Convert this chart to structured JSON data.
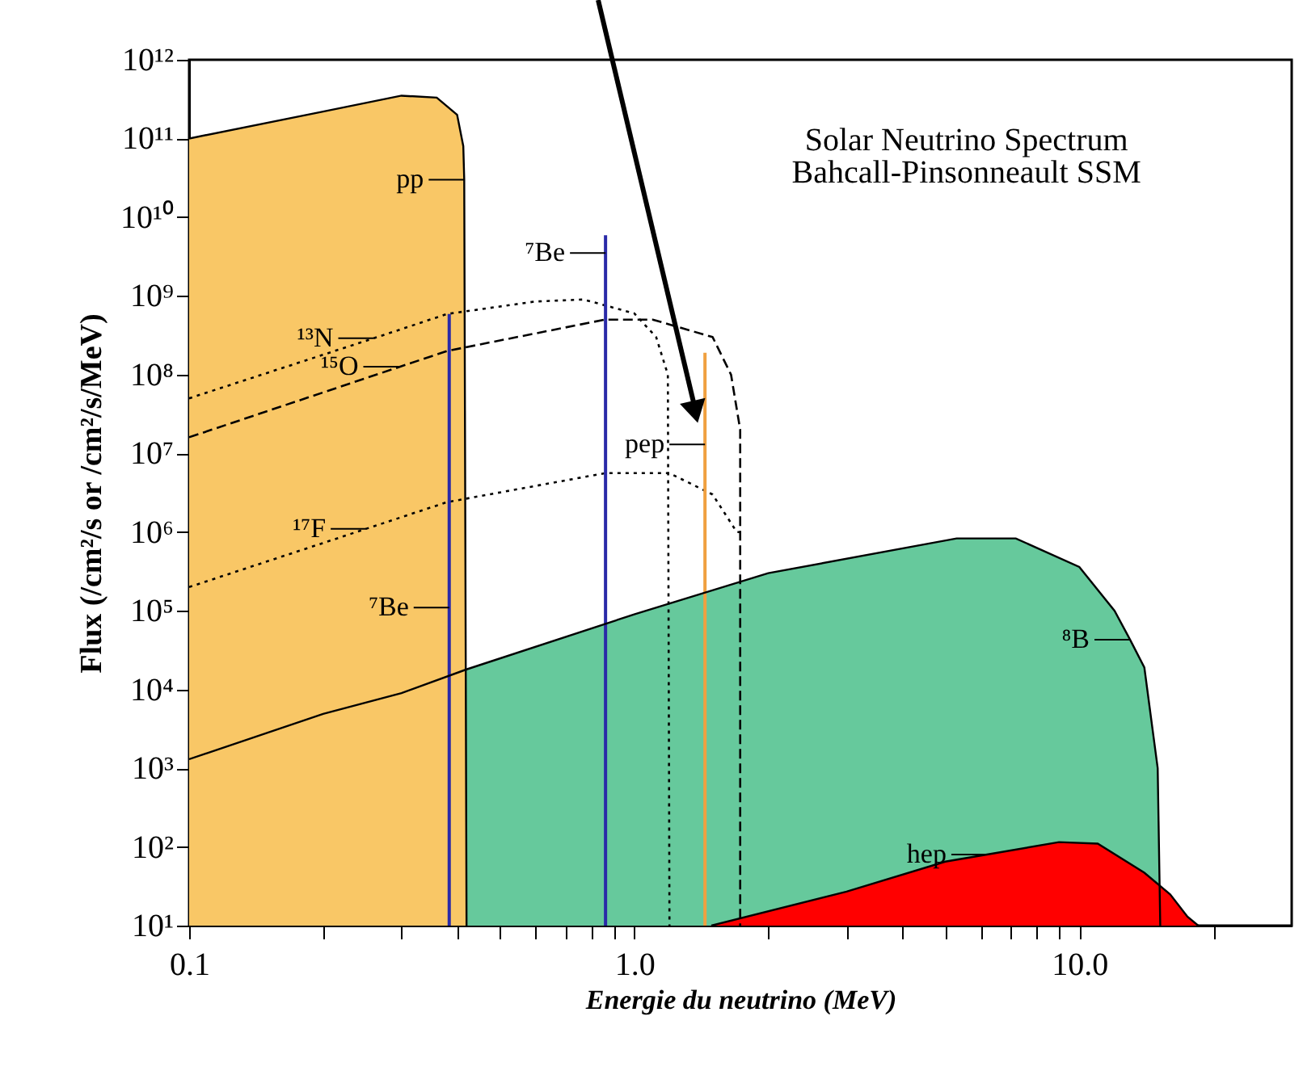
{
  "chart_data": {
    "type": "area",
    "title": "Solar Neutrino Spectrum",
    "subtitle": "Bahcall-Pinsonneault SSM",
    "xlabel": "Energie du neutrino (MeV)",
    "ylabel": "Flux (/cm²/s or /cm²/s/MeV)",
    "log": "xy",
    "xlim": [
      0.1,
      30
    ],
    "ylim": [
      10,
      1000000000000.0
    ],
    "xticks": [
      0.1,
      {
        "value": 0.2,
        "label": null
      },
      {
        "value": 0.3,
        "label": null
      },
      {
        "value": 0.4,
        "label": null
      },
      {
        "value": 0.5,
        "label": null
      },
      {
        "value": 0.6,
        "label": null
      },
      {
        "value": 0.7,
        "label": null
      },
      {
        "value": 0.8,
        "label": null
      },
      {
        "value": 0.9,
        "label": null
      },
      {
        "value": 1,
        "label": "1.0"
      },
      {
        "value": 2,
        "label": null
      },
      {
        "value": 3,
        "label": null
      },
      {
        "value": 4,
        "label": null
      },
      {
        "value": 5,
        "label": null
      },
      {
        "value": 6,
        "label": null
      },
      {
        "value": 7,
        "label": null
      },
      {
        "value": 8,
        "label": null
      },
      {
        "value": 9,
        "label": null
      },
      {
        "value": 10,
        "label": "10.0"
      },
      {
        "value": 20,
        "label": null
      }
    ],
    "yticks": [
      {
        "value": 10,
        "label": "10¹"
      },
      {
        "value": 100,
        "label": "10²"
      },
      {
        "value": 1000,
        "label": "10³"
      },
      {
        "value": 10000,
        "label": "10⁴"
      },
      {
        "value": 100000,
        "label": "10⁵"
      },
      {
        "value": 1000000,
        "label": "10⁶"
      },
      {
        "value": 10000000,
        "label": "10⁷"
      },
      {
        "value": 100000000,
        "label": "10⁸"
      },
      {
        "value": 1000000000,
        "label": "10⁹"
      },
      {
        "value": 10000000000,
        "label": "10¹⁰"
      },
      {
        "value": 100000000000,
        "label": "10¹¹"
      },
      {
        "value": 1000000000000,
        "label": "10¹²"
      }
    ],
    "grid": false,
    "series": [
      {
        "color": "#66c99c",
        "x": [
          0.1,
          0.2,
          0.3,
          0.42,
          1.0,
          2.0,
          5.3,
          7.2,
          10,
          12,
          13,
          14,
          15,
          15.2
        ],
        "values": [
          1300,
          4900,
          9000,
          18000,
          90000,
          300000,
          830000,
          830000,
          360000,
          100000,
          43000,
          19000,
          1000,
          10
        ]
      },
      {
        "color": "#f9c766",
        "x": [
          0.1,
          0.2,
          0.3,
          0.36,
          0.4,
          0.413,
          0.415,
          0.42
        ],
        "values": [
          100000000000.0,
          220000000000.0,
          350000000000.0,
          330000000000.0,
          200000000000.0,
          80000000000.0,
          30000000000.0,
          10
        ]
      },
      {
        "color": "#ff0000",
        "x": [
          1.49,
          3,
          5,
          6.2,
          9,
          11,
          14,
          16,
          17.5,
          18.5
        ],
        "values": [
          10,
          27,
          65,
          80,
          115,
          110,
          47,
          25,
          13,
          10
        ]
      },
      {
        "type": "line",
        "color": "#000000",
        "line_style": "dotted",
        "x": [
          0.1,
          0.26,
          0.38,
          0.6,
          0.77,
          1.0,
          1.12,
          1.19,
          1.2
        ],
        "values": [
          50000000.0,
          290000000.0,
          590000000.0,
          850000000.0,
          900000000.0,
          600000000.0,
          300000000.0,
          100000000.0,
          10
        ]
      },
      {
        "type": "line",
        "color": "#000000",
        "line_style": "dashed",
        "x": [
          0.1,
          0.38,
          0.86,
          1.1,
          1.5,
          1.65,
          1.73,
          1.73
        ],
        "values": [
          16000000.0,
          200000000.0,
          500000000.0,
          500000000.0,
          300000000.0,
          100000000.0,
          20000000.0,
          10
        ]
      },
      {
        "type": "line",
        "color": "#000000",
        "line_style": "dotted",
        "x": [
          0.1,
          0.38,
          0.86,
          1.2,
          1.5,
          1.7,
          1.74
        ],
        "values": [
          200000.0,
          2400000.0,
          5600000.0,
          5600000.0,
          3000000.0,
          1000000.0,
          1000000.0
        ]
      },
      {
        "type": "line",
        "color": "#2a2aa8",
        "x": [
          0.384,
          0.384
        ],
        "values": [
          10,
          590000000.0
        ]
      },
      {
        "type": "line",
        "color": "#2a2aa8",
        "x": [
          0.862,
          0.862
        ],
        "values": [
          10,
          5900000000.0
        ]
      },
      {
        "type": "line",
        "color": "#f0a040",
        "x": [
          1.442,
          1.442
        ],
        "values": [
          10,
          190000000.0
        ]
      }
    ],
    "annotations": [
      {
        "text": "pp",
        "x": 0.415,
        "y": 30000000000.0
      },
      {
        "text": "⁷Be",
        "x": 0.862,
        "y": 3500000000.0
      },
      {
        "text": "¹³N",
        "x": 0.26,
        "y": 290000000.0
      },
      {
        "text": "¹⁵O",
        "x": 0.296,
        "y": 126000000.0
      },
      {
        "text": "¹⁷F",
        "x": 0.25,
        "y": 1100000.0
      },
      {
        "text": "⁷Be",
        "x": 0.384,
        "y": 110000.0
      },
      {
        "text": "pep",
        "x": 1.442,
        "y": 13000000.0
      },
      {
        "text": "⁸B",
        "x": 13,
        "y": 43000.0
      },
      {
        "text": "hep",
        "x": 6.2,
        "y": 80
      }
    ]
  }
}
